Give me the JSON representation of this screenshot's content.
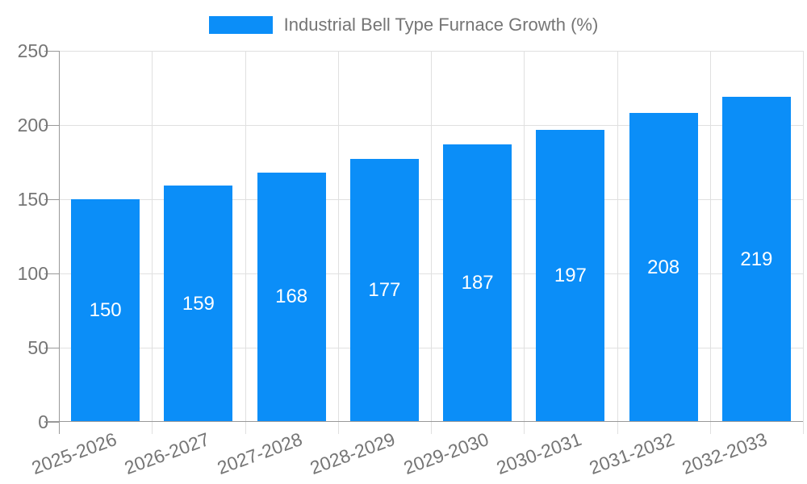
{
  "chart_data": {
    "type": "bar",
    "title": "Industrial Bell Type Furnace Growth (%)",
    "categories": [
      "2025-2026",
      "2026-2027",
      "2027-2028",
      "2028-2029",
      "2029-2030",
      "2030-2031",
      "2031-2032",
      "2032-2033"
    ],
    "series": [
      {
        "name": "Industrial Bell Type Furnace Growth (%)",
        "values": [
          150,
          159,
          168,
          177,
          187,
          197,
          208,
          219
        ]
      }
    ],
    "xlabel": "",
    "ylabel": "",
    "ylim": [
      0,
      250
    ],
    "yticks": [
      0,
      50,
      100,
      150,
      200,
      250
    ],
    "grid": true,
    "legend_position": "top-center",
    "x_label_rotation_deg": -20,
    "bar_color": "#0b8ef8",
    "grid_line_color": "#e0e0e0",
    "axis_line_color": "#999999",
    "axis_text_color": "#757575",
    "value_label_color": "#ffffff"
  }
}
